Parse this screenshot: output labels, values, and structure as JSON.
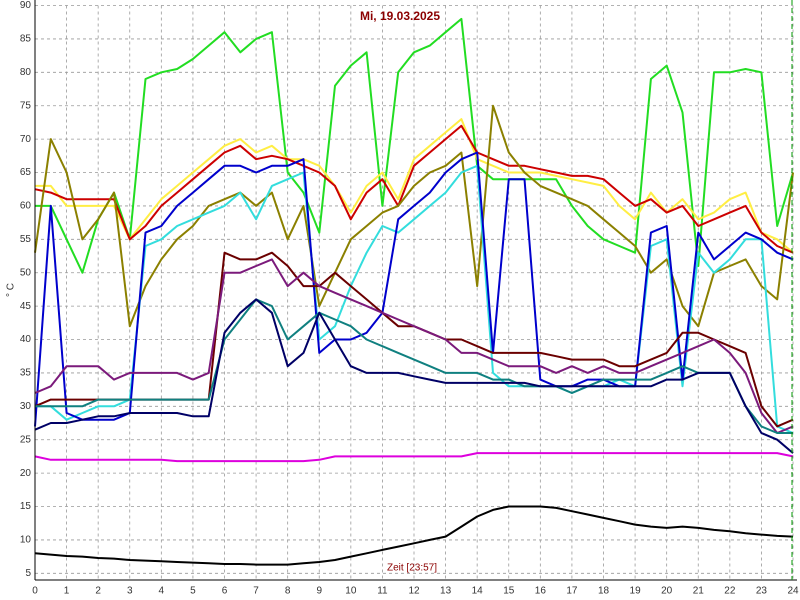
{
  "chart_data": {
    "type": "line",
    "title": "Mi, 19.03.2025",
    "x_label": "Zeit [23:57]",
    "y_label": "° C",
    "x": [
      0,
      0.5,
      1,
      1.5,
      2,
      2.5,
      3,
      3.5,
      4,
      4.5,
      5,
      5.5,
      6,
      6.5,
      7,
      7.5,
      8,
      8.5,
      9,
      9.5,
      10,
      10.5,
      11,
      11.5,
      12,
      12.5,
      13,
      13.5,
      14,
      14.5,
      15,
      15.5,
      16,
      16.5,
      17,
      17.5,
      18,
      18.5,
      19,
      19.5,
      20,
      20.5,
      21,
      21.5,
      22,
      22.5,
      23,
      23.5,
      24
    ],
    "xlim": [
      0,
      24
    ],
    "xticks": [
      0,
      1,
      2,
      3,
      4,
      5,
      6,
      7,
      8,
      9,
      10,
      11,
      12,
      13,
      14,
      15,
      16,
      17,
      18,
      19,
      20,
      21,
      22,
      23,
      24
    ],
    "ylim": [
      4,
      90
    ],
    "yticks": [
      5,
      10,
      15,
      20,
      25,
      30,
      35,
      40,
      45,
      50,
      55,
      60,
      65,
      70,
      75,
      80,
      85,
      90
    ],
    "grid": true,
    "series": [
      {
        "color": "#000000",
        "values": [
          8,
          7.8,
          7.6,
          7.5,
          7.3,
          7.2,
          7,
          6.9,
          6.8,
          6.7,
          6.6,
          6.5,
          6.4,
          6.4,
          6.3,
          6.3,
          6.3,
          6.5,
          6.7,
          7,
          7.5,
          8,
          8.5,
          9,
          9.5,
          10,
          10.5,
          12,
          13.5,
          14.5,
          15,
          15,
          15,
          14.8,
          14.3,
          13.8,
          13.3,
          12.8,
          12.3,
          12,
          11.8,
          12,
          11.8,
          11.5,
          11.3,
          11,
          10.8,
          10.6,
          10.5
        ]
      },
      {
        "color": "#dd00dd",
        "values": [
          22.5,
          22,
          22,
          22,
          22,
          22,
          22,
          22,
          22,
          21.8,
          21.8,
          21.8,
          21.8,
          21.8,
          21.8,
          21.8,
          21.8,
          21.8,
          22,
          22.5,
          22.5,
          22.5,
          22.5,
          22.5,
          22.5,
          22.5,
          22.5,
          22.5,
          23,
          23,
          23,
          23,
          23,
          23,
          23,
          23,
          23,
          23,
          23,
          23,
          23,
          23,
          23,
          23,
          23,
          23,
          23,
          23,
          22.5
        ]
      },
      {
        "color": "#22dd22",
        "values": [
          60,
          60,
          55,
          50,
          58,
          62,
          55,
          79,
          80,
          80.5,
          82,
          84,
          86,
          83,
          85,
          86,
          65,
          62,
          56,
          78,
          81,
          83,
          60,
          80,
          83,
          84,
          86,
          88,
          66,
          64,
          64,
          64,
          64,
          64,
          60,
          57,
          55,
          54,
          53,
          79,
          81,
          74,
          51,
          80,
          80,
          80.5,
          80,
          57,
          65
        ]
      },
      {
        "color": "#ffee44",
        "values": [
          63,
          63,
          60,
          60,
          60,
          60,
          55,
          58,
          61,
          63,
          65,
          67,
          69,
          70,
          68,
          69,
          67,
          67,
          66,
          63,
          59,
          63,
          65,
          61,
          67,
          69,
          71,
          73,
          67,
          66,
          65,
          65,
          65,
          64.5,
          64,
          63.5,
          63,
          60,
          58,
          62,
          59,
          61,
          58,
          59,
          61,
          62,
          56,
          55,
          53
        ]
      },
      {
        "color": "#cc0000",
        "values": [
          62.5,
          62,
          61,
          61,
          61,
          61,
          55,
          57,
          60,
          62,
          64,
          66,
          68,
          69,
          67,
          67.5,
          67,
          66,
          65,
          63,
          58,
          62,
          64,
          60,
          66,
          68,
          70,
          72,
          68,
          67,
          66,
          66,
          65.5,
          65,
          64.5,
          64.5,
          64,
          62,
          60,
          61,
          59,
          60,
          57,
          58,
          59,
          60,
          56,
          54,
          53
        ]
      },
      {
        "color": "#8b8000",
        "values": [
          53,
          70,
          65,
          55,
          58,
          62,
          42,
          48,
          52,
          55,
          57,
          60,
          61,
          62,
          60,
          62,
          55,
          60,
          45,
          50,
          55,
          57,
          59,
          60,
          63,
          65,
          66,
          68,
          48,
          75,
          68,
          65,
          63,
          62,
          61,
          60,
          58,
          56,
          54,
          50,
          52,
          45,
          42,
          50,
          51,
          52,
          48,
          46,
          65
        ]
      },
      {
        "color": "#33dddd",
        "values": [
          30,
          30,
          28,
          29,
          30,
          30,
          31,
          54,
          55,
          57,
          58,
          59,
          60,
          62,
          58,
          63,
          64,
          65,
          40,
          42,
          48,
          53,
          57,
          56,
          58,
          60,
          62,
          65,
          66,
          35,
          33,
          33,
          33,
          33,
          32,
          33,
          33,
          34,
          33,
          54,
          55,
          33,
          53,
          50,
          52,
          55,
          55,
          27,
          26
        ]
      },
      {
        "color": "#0000cc",
        "values": [
          27,
          60,
          29,
          28,
          28,
          28,
          29,
          56,
          57,
          60,
          62,
          64,
          66,
          66,
          65,
          66,
          66,
          67,
          38,
          40,
          40,
          41,
          44,
          58,
          60,
          62,
          65,
          67,
          68,
          38,
          64,
          64,
          34,
          33,
          33,
          34,
          34,
          33,
          33,
          56,
          57,
          34,
          56,
          52,
          54,
          56,
          55,
          53,
          52
        ]
      },
      {
        "color": "#6b0000",
        "values": [
          30,
          31,
          31,
          31,
          31,
          31,
          31,
          31,
          31,
          31,
          31,
          31,
          53,
          52,
          52,
          53,
          51,
          48,
          48,
          50,
          48,
          46,
          44,
          42,
          42,
          41,
          40,
          40,
          39,
          38,
          38,
          38,
          38,
          37.5,
          37,
          37,
          37,
          36,
          36,
          37,
          38,
          41,
          41,
          40,
          39,
          38,
          30,
          27,
          28
        ]
      },
      {
        "color": "#7b1a7b",
        "values": [
          32,
          33,
          36,
          36,
          36,
          34,
          35,
          35,
          35,
          35,
          34,
          35,
          50,
          50,
          51,
          52,
          48,
          50,
          48,
          47,
          46,
          45,
          44,
          43,
          42,
          41,
          40,
          38,
          38,
          37,
          36,
          36,
          36,
          35,
          36,
          35,
          36,
          35,
          35,
          36,
          37,
          38,
          39,
          40,
          38,
          35,
          29,
          26,
          27
        ]
      },
      {
        "color": "#108080",
        "values": [
          30,
          30,
          30,
          30,
          31,
          31,
          31,
          31,
          31,
          31,
          31,
          31,
          40,
          43,
          46,
          45,
          40,
          42,
          44,
          43,
          42,
          40,
          39,
          38,
          37,
          36,
          35,
          35,
          35,
          34,
          34,
          33,
          33,
          33,
          32,
          33,
          34,
          34,
          34,
          34,
          35,
          36,
          35,
          35,
          35,
          30,
          27,
          26,
          26
        ]
      },
      {
        "color": "#000066",
        "values": [
          26.5,
          27.5,
          27.5,
          28,
          28.5,
          28.5,
          29,
          29,
          29,
          29,
          28.5,
          28.5,
          41,
          44,
          46,
          44,
          36,
          38,
          44,
          40,
          36,
          35,
          35,
          35,
          34.5,
          34,
          33.5,
          33.5,
          33.5,
          33.5,
          33.5,
          33.5,
          33,
          33,
          33,
          33,
          33,
          33,
          33,
          33,
          34,
          34,
          35,
          35,
          35,
          30,
          26,
          25,
          23
        ]
      }
    ]
  }
}
